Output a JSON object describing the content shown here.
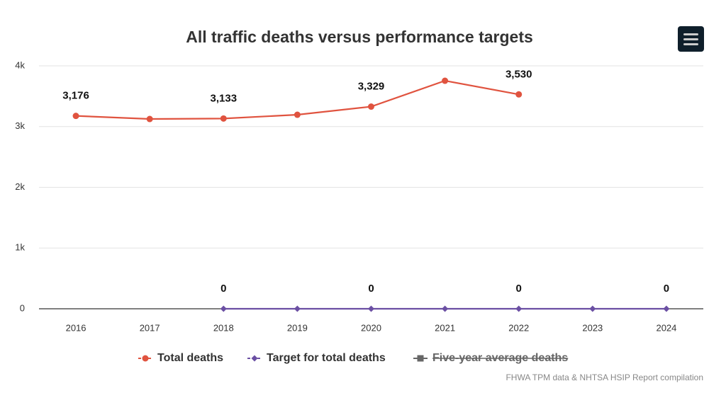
{
  "chart_data": {
    "type": "line",
    "title": "All traffic deaths versus performance targets",
    "credits": "FHWA TPM data & NHTSA HSIP Report compilation",
    "categories": [
      "2016",
      "2017",
      "2018",
      "2019",
      "2020",
      "2021",
      "2022",
      "2023",
      "2024"
    ],
    "series": [
      {
        "name": "Total deaths",
        "color": "#e0533f",
        "marker": "circle",
        "values": [
          3176,
          3125,
          3133,
          3195,
          3329,
          3755,
          3530,
          null,
          null
        ],
        "value_labels": [
          "3,176",
          null,
          "3,133",
          null,
          "3,329",
          null,
          "3,530",
          null,
          null
        ]
      },
      {
        "name": "Target for total deaths",
        "color": "#6b4fa3",
        "marker": "diamond",
        "values": [
          null,
          null,
          0,
          0,
          0,
          0,
          0,
          0,
          0
        ],
        "value_labels": [
          null,
          null,
          "0",
          null,
          "0",
          null,
          "0",
          null,
          "0"
        ]
      },
      {
        "name": "Five-year average deaths",
        "color": "#555555",
        "marker": "square",
        "hidden": true,
        "values": [
          null,
          null,
          null,
          null,
          null,
          null,
          null,
          null,
          null
        ]
      }
    ],
    "ylim": [
      0,
      4000
    ],
    "yticks": [
      0,
      {
        "value": 1000,
        "label": "1k"
      },
      {
        "value": 2000,
        "label": "2k"
      },
      {
        "value": 3000,
        "label": "3k"
      },
      {
        "value": 4000,
        "label": "4k"
      }
    ],
    "grid": true,
    "legend": "bottom"
  }
}
